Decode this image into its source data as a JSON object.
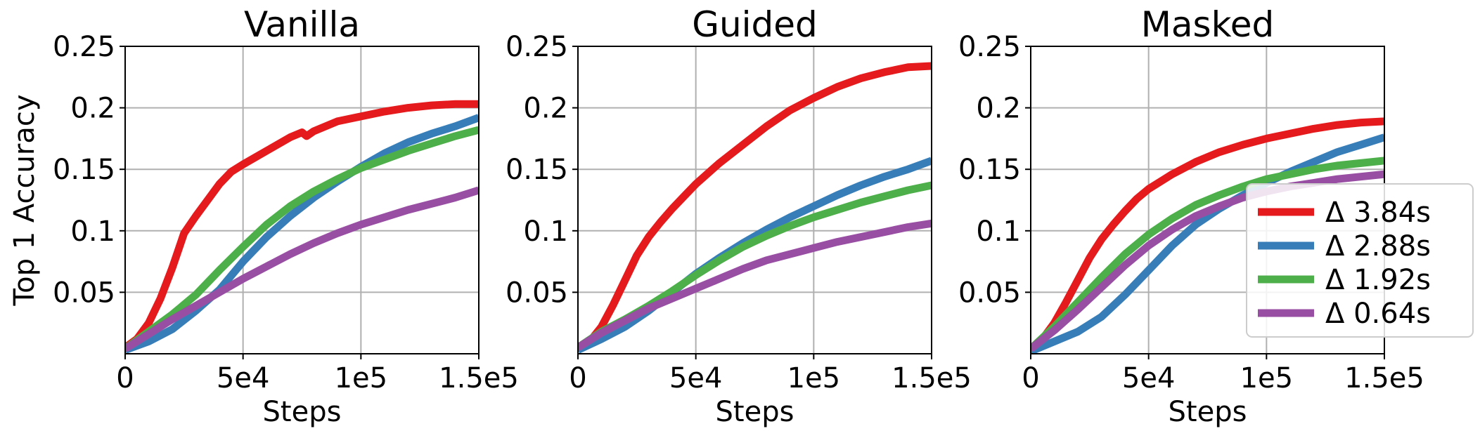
{
  "chart_data": [
    {
      "type": "line",
      "title": "Vanilla",
      "xlabel": "Steps",
      "ylabel": "Top 1 Accuracy",
      "xlim": [
        0,
        150000
      ],
      "ylim": [
        0,
        0.25
      ],
      "xticks": [
        0,
        50000,
        100000,
        150000
      ],
      "xtick_labels": [
        "0",
        "5e4",
        "1e5",
        "1.5e5"
      ],
      "yticks": [
        0.05,
        0.1,
        0.15,
        0.2,
        0.25
      ],
      "ytick_labels": [
        "0.05",
        "0.1",
        "0.15",
        "0.2",
        "0.25"
      ],
      "grid": true,
      "series": [
        {
          "name": "Δ 3.84s",
          "color": "#e41a1c",
          "x": [
            0,
            5000,
            10000,
            15000,
            20000,
            25000,
            30000,
            35000,
            40000,
            45000,
            50000,
            60000,
            70000,
            75000,
            77000,
            80000,
            90000,
            100000,
            110000,
            120000,
            130000,
            140000,
            150000
          ],
          "y": [
            0.005,
            0.012,
            0.025,
            0.045,
            0.07,
            0.098,
            0.112,
            0.125,
            0.138,
            0.148,
            0.154,
            0.165,
            0.176,
            0.18,
            0.177,
            0.181,
            0.189,
            0.193,
            0.197,
            0.2,
            0.202,
            0.203,
            0.203
          ]
        },
        {
          "name": "Δ 2.88s",
          "color": "#377eb8",
          "x": [
            0,
            10000,
            20000,
            30000,
            40000,
            50000,
            60000,
            70000,
            80000,
            90000,
            100000,
            110000,
            120000,
            130000,
            140000,
            150000
          ],
          "y": [
            0.003,
            0.01,
            0.02,
            0.035,
            0.052,
            0.075,
            0.095,
            0.112,
            0.127,
            0.14,
            0.152,
            0.163,
            0.172,
            0.179,
            0.185,
            0.192
          ]
        },
        {
          "name": "Δ 1.92s",
          "color": "#4daf4a",
          "x": [
            0,
            10000,
            20000,
            30000,
            40000,
            50000,
            60000,
            70000,
            80000,
            90000,
            100000,
            110000,
            120000,
            130000,
            140000,
            150000
          ],
          "y": [
            0.004,
            0.018,
            0.032,
            0.048,
            0.068,
            0.087,
            0.105,
            0.12,
            0.132,
            0.142,
            0.151,
            0.158,
            0.165,
            0.171,
            0.177,
            0.182
          ]
        },
        {
          "name": "Δ 0.64s",
          "color": "#984ea3",
          "x": [
            0,
            10000,
            20000,
            30000,
            40000,
            50000,
            60000,
            70000,
            80000,
            90000,
            100000,
            110000,
            120000,
            130000,
            140000,
            150000
          ],
          "y": [
            0.004,
            0.016,
            0.028,
            0.039,
            0.05,
            0.061,
            0.071,
            0.081,
            0.09,
            0.098,
            0.105,
            0.111,
            0.117,
            0.122,
            0.127,
            0.133
          ]
        }
      ]
    },
    {
      "type": "line",
      "title": "Guided",
      "xlabel": "Steps",
      "ylabel": "",
      "xlim": [
        0,
        150000
      ],
      "ylim": [
        0,
        0.25
      ],
      "xticks": [
        0,
        50000,
        100000,
        150000
      ],
      "xtick_labels": [
        "0",
        "5e4",
        "1e5",
        "1.5e5"
      ],
      "yticks": [
        0.05,
        0.1,
        0.15,
        0.2,
        0.25
      ],
      "ytick_labels": [
        "0.05",
        "0.1",
        "0.15",
        "0.2",
        "0.25"
      ],
      "grid": true,
      "series": [
        {
          "name": "Δ 3.84s",
          "color": "#e41a1c",
          "x": [
            0,
            5000,
            10000,
            15000,
            20000,
            25000,
            30000,
            35000,
            40000,
            45000,
            50000,
            60000,
            70000,
            80000,
            90000,
            100000,
            110000,
            120000,
            130000,
            140000,
            150000
          ],
          "y": [
            0.004,
            0.01,
            0.022,
            0.04,
            0.06,
            0.08,
            0.095,
            0.107,
            0.118,
            0.128,
            0.138,
            0.155,
            0.17,
            0.185,
            0.198,
            0.208,
            0.217,
            0.224,
            0.229,
            0.233,
            0.234
          ]
        },
        {
          "name": "Δ 2.88s",
          "color": "#377eb8",
          "x": [
            0,
            10000,
            20000,
            30000,
            40000,
            50000,
            60000,
            70000,
            80000,
            90000,
            100000,
            110000,
            120000,
            130000,
            140000,
            150000
          ],
          "y": [
            0.003,
            0.012,
            0.022,
            0.035,
            0.05,
            0.065,
            0.078,
            0.09,
            0.101,
            0.111,
            0.12,
            0.129,
            0.137,
            0.144,
            0.15,
            0.157
          ]
        },
        {
          "name": "Δ 1.92s",
          "color": "#4daf4a",
          "x": [
            0,
            10000,
            20000,
            30000,
            40000,
            50000,
            60000,
            70000,
            80000,
            90000,
            100000,
            110000,
            120000,
            130000,
            140000,
            150000
          ],
          "y": [
            0.005,
            0.018,
            0.028,
            0.039,
            0.051,
            0.064,
            0.076,
            0.087,
            0.096,
            0.104,
            0.111,
            0.117,
            0.123,
            0.128,
            0.133,
            0.137
          ]
        },
        {
          "name": "Δ 0.64s",
          "color": "#984ea3",
          "x": [
            0,
            10000,
            20000,
            30000,
            40000,
            50000,
            60000,
            70000,
            80000,
            90000,
            100000,
            110000,
            120000,
            130000,
            140000,
            150000
          ],
          "y": [
            0.005,
            0.017,
            0.027,
            0.037,
            0.045,
            0.053,
            0.061,
            0.069,
            0.076,
            0.081,
            0.086,
            0.091,
            0.095,
            0.099,
            0.103,
            0.106
          ]
        }
      ]
    },
    {
      "type": "line",
      "title": "Masked",
      "xlabel": "Steps",
      "ylabel": "",
      "xlim": [
        0,
        150000
      ],
      "ylim": [
        0,
        0.25
      ],
      "xticks": [
        0,
        50000,
        100000,
        150000
      ],
      "xtick_labels": [
        "0",
        "5e4",
        "1e5",
        "1.5e5"
      ],
      "yticks": [
        0.05,
        0.1,
        0.15,
        0.2,
        0.25
      ],
      "ytick_labels": [
        "0.05",
        "0.1",
        "0.15",
        "0.2",
        "0.25"
      ],
      "grid": true,
      "series": [
        {
          "name": "Δ 3.84s",
          "color": "#e41a1c",
          "x": [
            0,
            5000,
            10000,
            15000,
            20000,
            25000,
            30000,
            35000,
            40000,
            45000,
            50000,
            60000,
            70000,
            80000,
            90000,
            100000,
            110000,
            120000,
            130000,
            140000,
            150000
          ],
          "y": [
            0.004,
            0.012,
            0.025,
            0.042,
            0.06,
            0.078,
            0.093,
            0.105,
            0.116,
            0.126,
            0.134,
            0.146,
            0.156,
            0.164,
            0.17,
            0.175,
            0.179,
            0.183,
            0.186,
            0.188,
            0.189
          ]
        },
        {
          "name": "Δ 2.88s",
          "color": "#377eb8",
          "x": [
            0,
            10000,
            20000,
            30000,
            40000,
            50000,
            60000,
            70000,
            80000,
            90000,
            100000,
            110000,
            120000,
            130000,
            140000,
            150000
          ],
          "y": [
            0.002,
            0.01,
            0.018,
            0.03,
            0.048,
            0.068,
            0.088,
            0.105,
            0.118,
            0.129,
            0.139,
            0.148,
            0.156,
            0.164,
            0.17,
            0.176
          ]
        },
        {
          "name": "Δ 1.92s",
          "color": "#4daf4a",
          "x": [
            0,
            10000,
            20000,
            30000,
            40000,
            50000,
            60000,
            70000,
            80000,
            90000,
            100000,
            110000,
            120000,
            130000,
            140000,
            150000
          ],
          "y": [
            0.004,
            0.022,
            0.042,
            0.062,
            0.081,
            0.097,
            0.11,
            0.121,
            0.129,
            0.136,
            0.142,
            0.146,
            0.15,
            0.153,
            0.155,
            0.157
          ]
        },
        {
          "name": "Δ 0.64s",
          "color": "#984ea3",
          "x": [
            0,
            10000,
            20000,
            30000,
            40000,
            50000,
            60000,
            70000,
            80000,
            90000,
            100000,
            110000,
            120000,
            130000,
            140000,
            150000
          ],
          "y": [
            0.004,
            0.019,
            0.036,
            0.054,
            0.072,
            0.088,
            0.101,
            0.112,
            0.12,
            0.127,
            0.132,
            0.136,
            0.139,
            0.142,
            0.144,
            0.146
          ]
        }
      ]
    }
  ],
  "legend": {
    "placement": "right",
    "entries": [
      {
        "label": "Δ 3.84s",
        "color": "#e41a1c"
      },
      {
        "label": "Δ 2.88s",
        "color": "#377eb8"
      },
      {
        "label": "Δ 1.92s",
        "color": "#4daf4a"
      },
      {
        "label": "Δ 0.64s",
        "color": "#984ea3"
      }
    ]
  }
}
